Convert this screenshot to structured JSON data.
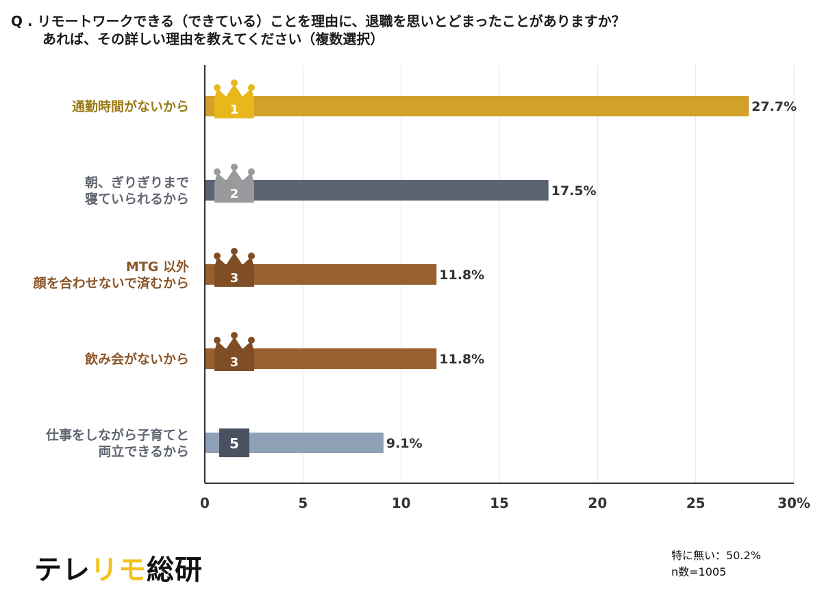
{
  "question": {
    "line1": "Q . リモートワークできる（できている）ことを理由に、退職を思いとどまったことがありますか？",
    "line2": "あれば、その詳しい理由を教えてください（複数選択）"
  },
  "chart_data": {
    "type": "bar",
    "orientation": "horizontal",
    "title": "リモートワークできる（できている）ことを理由に、退職を思いとどまったことがありますか？ あれば、その詳しい理由を教えてください（複数選択）",
    "xlabel": "",
    "ylabel": "",
    "xlim": [
      0,
      30
    ],
    "x_ticks": [
      "0",
      "5",
      "10",
      "15",
      "20",
      "25",
      "30%"
    ],
    "x_tick_values": [
      0,
      5,
      10,
      15,
      20,
      25,
      30
    ],
    "grid": true,
    "unit": "%",
    "categories": [
      [
        "通勤時間がないから"
      ],
      [
        "朝、ぎりぎりまで",
        "寝ていられるから"
      ],
      [
        "MTG 以外",
        "顔を合わせないで済むから"
      ],
      [
        "飲み会がないから"
      ],
      [
        "仕事をしながら子育てと",
        "両立できるから"
      ]
    ],
    "values": [
      27.7,
      17.5,
      11.8,
      11.8,
      9.1
    ],
    "value_labels": [
      "27.7%",
      "17.5%",
      "11.8%",
      "11.8%",
      "9.1%"
    ],
    "ranks": [
      "1",
      "2",
      "3",
      "3",
      "5"
    ],
    "bar_colors": [
      "#d1a12a",
      "#5b6473",
      "#98602c",
      "#98602c",
      "#8fa1b6"
    ],
    "label_colors": [
      "#9a7a16",
      "#5f6470",
      "#8a5628",
      "#8a5628",
      "#5f6470"
    ],
    "badge_colors": [
      "#e8b71c",
      "#9a9a9c",
      "#7f4e24",
      "#7f4e24",
      "#4a5261"
    ],
    "crown": [
      true,
      true,
      true,
      true,
      false
    ]
  },
  "brand": {
    "part1": "テレ",
    "part2": "リモ",
    "part3": "総研",
    "accent_color": "#f2c21a"
  },
  "note": {
    "none_label": "特に無い：50.2%",
    "sample_size": "n数=1005"
  }
}
